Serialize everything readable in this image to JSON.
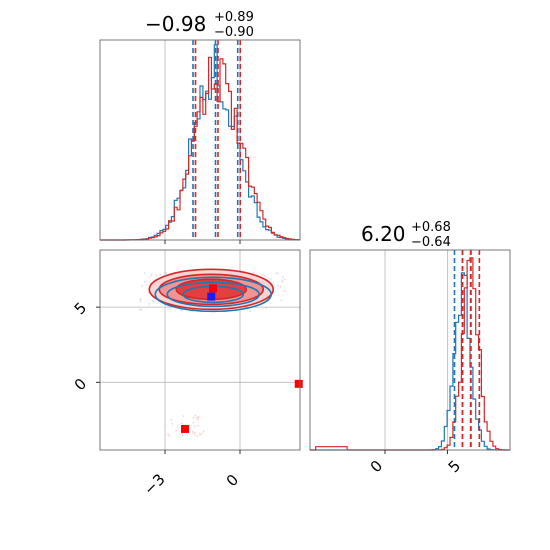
{
  "chart_data": [
    {
      "type": "histogram",
      "panel": "top-left marginal",
      "title": {
        "main": "−0.98",
        "sup": "+0.89",
        "sub": "−0.90"
      },
      "xlim": [
        -5.6,
        2.4
      ],
      "grid": true,
      "series": [
        {
          "color": "#1f77b4",
          "quantiles": [
            -1.88,
            -0.98,
            -0.09
          ]
        },
        {
          "color": "#d62728",
          "quantiles": [
            -1.78,
            -0.88,
            0.01
          ]
        }
      ]
    },
    {
      "type": "histogram",
      "panel": "bottom-right marginal",
      "title": {
        "main": "6.20",
        "sup": "+0.68",
        "sub": "−0.64"
      },
      "xlim": [
        -6,
        10
      ],
      "xticks": [
        "0",
        "5"
      ],
      "grid": true,
      "series": [
        {
          "color": "#1f77b4",
          "quantiles": [
            5.56,
            6.2,
            6.88
          ]
        },
        {
          "color": "#d62728",
          "quantiles": [
            6.2,
            6.85,
            7.55
          ]
        }
      ]
    },
    {
      "type": "contour",
      "panel": "bottom-left joint",
      "xlim": [
        -5.6,
        2.4
      ],
      "ylim": [
        -4.5,
        8.8
      ],
      "xticks": [
        "−3",
        "0"
      ],
      "yticks": [
        "0",
        "5"
      ],
      "grid": true,
      "series": [
        {
          "color": "#1f77b4",
          "marker": {
            "x": -1.15,
            "y": 5.7
          }
        },
        {
          "color": "#d62728",
          "markers": [
            {
              "x": -1.08,
              "y": 6.25
            },
            {
              "x": 2.35,
              "y": -0.1
            },
            {
              "x": -2.2,
              "y": -3.1
            }
          ]
        }
      ]
    }
  ]
}
